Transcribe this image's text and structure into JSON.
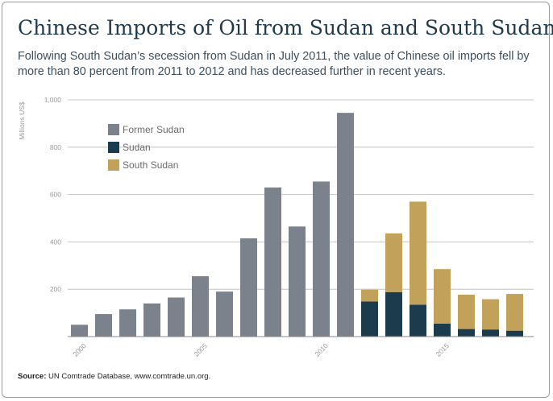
{
  "title": "Chinese Imports of Oil from Sudan and South Sudan",
  "subtitle": "Following South Sudan’s secession from Sudan in July 2011, the value of Chinese oil imports fell by more than 80 percent from 2011 to 2012 and has decreased further in recent years.",
  "source": {
    "label": "Source:",
    "text": "UN Comtrade Database, www.comtrade.un.org."
  },
  "chart_data": {
    "type": "bar",
    "stacked": true,
    "ylabel": "Millions US$",
    "ylim": [
      0,
      1000
    ],
    "yticks": [
      "1,000",
      "800",
      "600",
      "400",
      "200"
    ],
    "ytick_values": [
      1000,
      800,
      600,
      400,
      200
    ],
    "x": [
      2000,
      2001,
      2002,
      2003,
      2004,
      2005,
      2006,
      2007,
      2008,
      2009,
      2010,
      2011,
      2012,
      2013,
      2014,
      2015,
      2016,
      2017,
      2018
    ],
    "xticks": [
      "2000",
      "2005",
      "2010",
      "2015"
    ],
    "xtick_values": [
      2000,
      2005,
      2010,
      2015
    ],
    "grid": true,
    "legend_position": "top-left",
    "series": [
      {
        "name": "Former Sudan",
        "color": "#7b828c",
        "values": [
          50,
          95,
          115,
          140,
          165,
          255,
          190,
          415,
          630,
          465,
          655,
          945,
          0,
          0,
          0,
          0,
          0,
          0,
          0
        ]
      },
      {
        "name": "Sudan",
        "color": "#1c3b4c",
        "values": [
          0,
          0,
          0,
          0,
          0,
          0,
          0,
          0,
          0,
          0,
          0,
          0,
          148,
          188,
          135,
          55,
          32,
          30,
          25
        ]
      },
      {
        "name": "South Sudan",
        "color": "#c2a15a",
        "values": [
          0,
          0,
          0,
          0,
          0,
          0,
          0,
          0,
          0,
          0,
          0,
          0,
          50,
          248,
          435,
          230,
          145,
          128,
          155
        ]
      }
    ]
  }
}
